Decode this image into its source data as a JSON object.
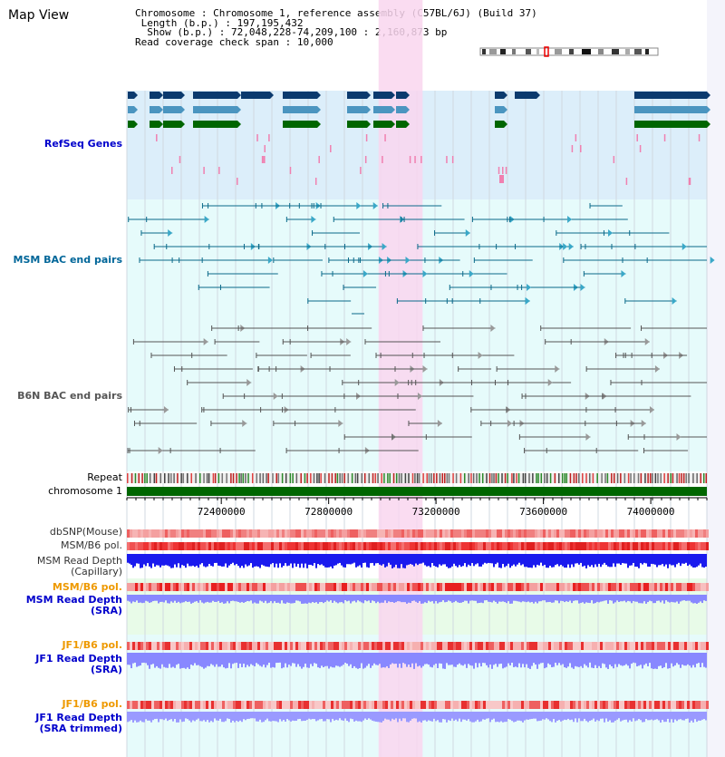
{
  "title": "Map View",
  "info": {
    "chromosome_label": "Chromosome",
    "chromosome_value": "Chromosome 1, reference assembly (C57BL/6J) (Build 37)",
    "length_label": "Length (b.p.)",
    "length_value": "197,195,432",
    "show_label": "Show (b.p.)",
    "show_value": "72,048,228-74,209,100 : 2,160,873 bp",
    "coverage_label": "Read coverage check span",
    "coverage_value": "10,000"
  },
  "tracks": {
    "refseq": {
      "label": "RefSeq Genes",
      "color": "#0000cc"
    },
    "msm_bac": {
      "label": "MSM BAC end pairs",
      "color": "#006699"
    },
    "b6n_bac": {
      "label": "B6N BAC end pairs",
      "color": "#555555"
    },
    "repeat": {
      "label": "Repeat",
      "color": "#000000"
    },
    "chromosome": {
      "label": "chromosome 1",
      "color": "#000000"
    },
    "dbsnp": {
      "label": "dbSNP(Mouse)",
      "color": "#333333"
    },
    "msm_b6_pol": {
      "label": "MSM/B6 pol.",
      "color": "#333333"
    },
    "msm_depth_cap": {
      "label": "MSM Read Depth\n(Capillary)",
      "color": "#333333"
    },
    "msm_b6_pol2": {
      "label": "MSM/B6 pol.",
      "color": "#ee9900"
    },
    "msm_depth_sra": {
      "label": "MSM Read Depth\n(SRA)",
      "color": "#0000cc"
    },
    "jf1_b6_pol": {
      "label": "JF1/B6 pol.",
      "color": "#ee9900"
    },
    "jf1_depth_sra": {
      "label": "JF1 Read Depth\n(SRA)",
      "color": "#0000cc"
    },
    "jf1_b6_pol2": {
      "label": "JF1/B6 pol.",
      "color": "#ee9900"
    },
    "jf1_depth_trim": {
      "label": "JF1 Read Depth\n(SRA trimmed)",
      "color": "#0000cc"
    }
  },
  "axis": {
    "ticks": [
      "72400000",
      "72800000",
      "73200000",
      "73600000",
      "74000000"
    ],
    "tick_values": [
      72400000,
      72800000,
      73200000,
      73600000,
      74000000
    ],
    "range": [
      72048228,
      74209100
    ]
  },
  "highlight_region": [
    72986000,
    73150000
  ],
  "colors": {
    "refseq_bg": "#dceefa",
    "light_bg": "#e6fbfb",
    "highlight": "#f9d6ef",
    "dark_blue": "#0b3a6e",
    "mid_blue": "#4b95c0",
    "green": "#006600",
    "chrom_green": "#006600",
    "depth_blue": "#1a1aee",
    "depth_light": "#8888ff",
    "snp_red": "#ee3333"
  }
}
